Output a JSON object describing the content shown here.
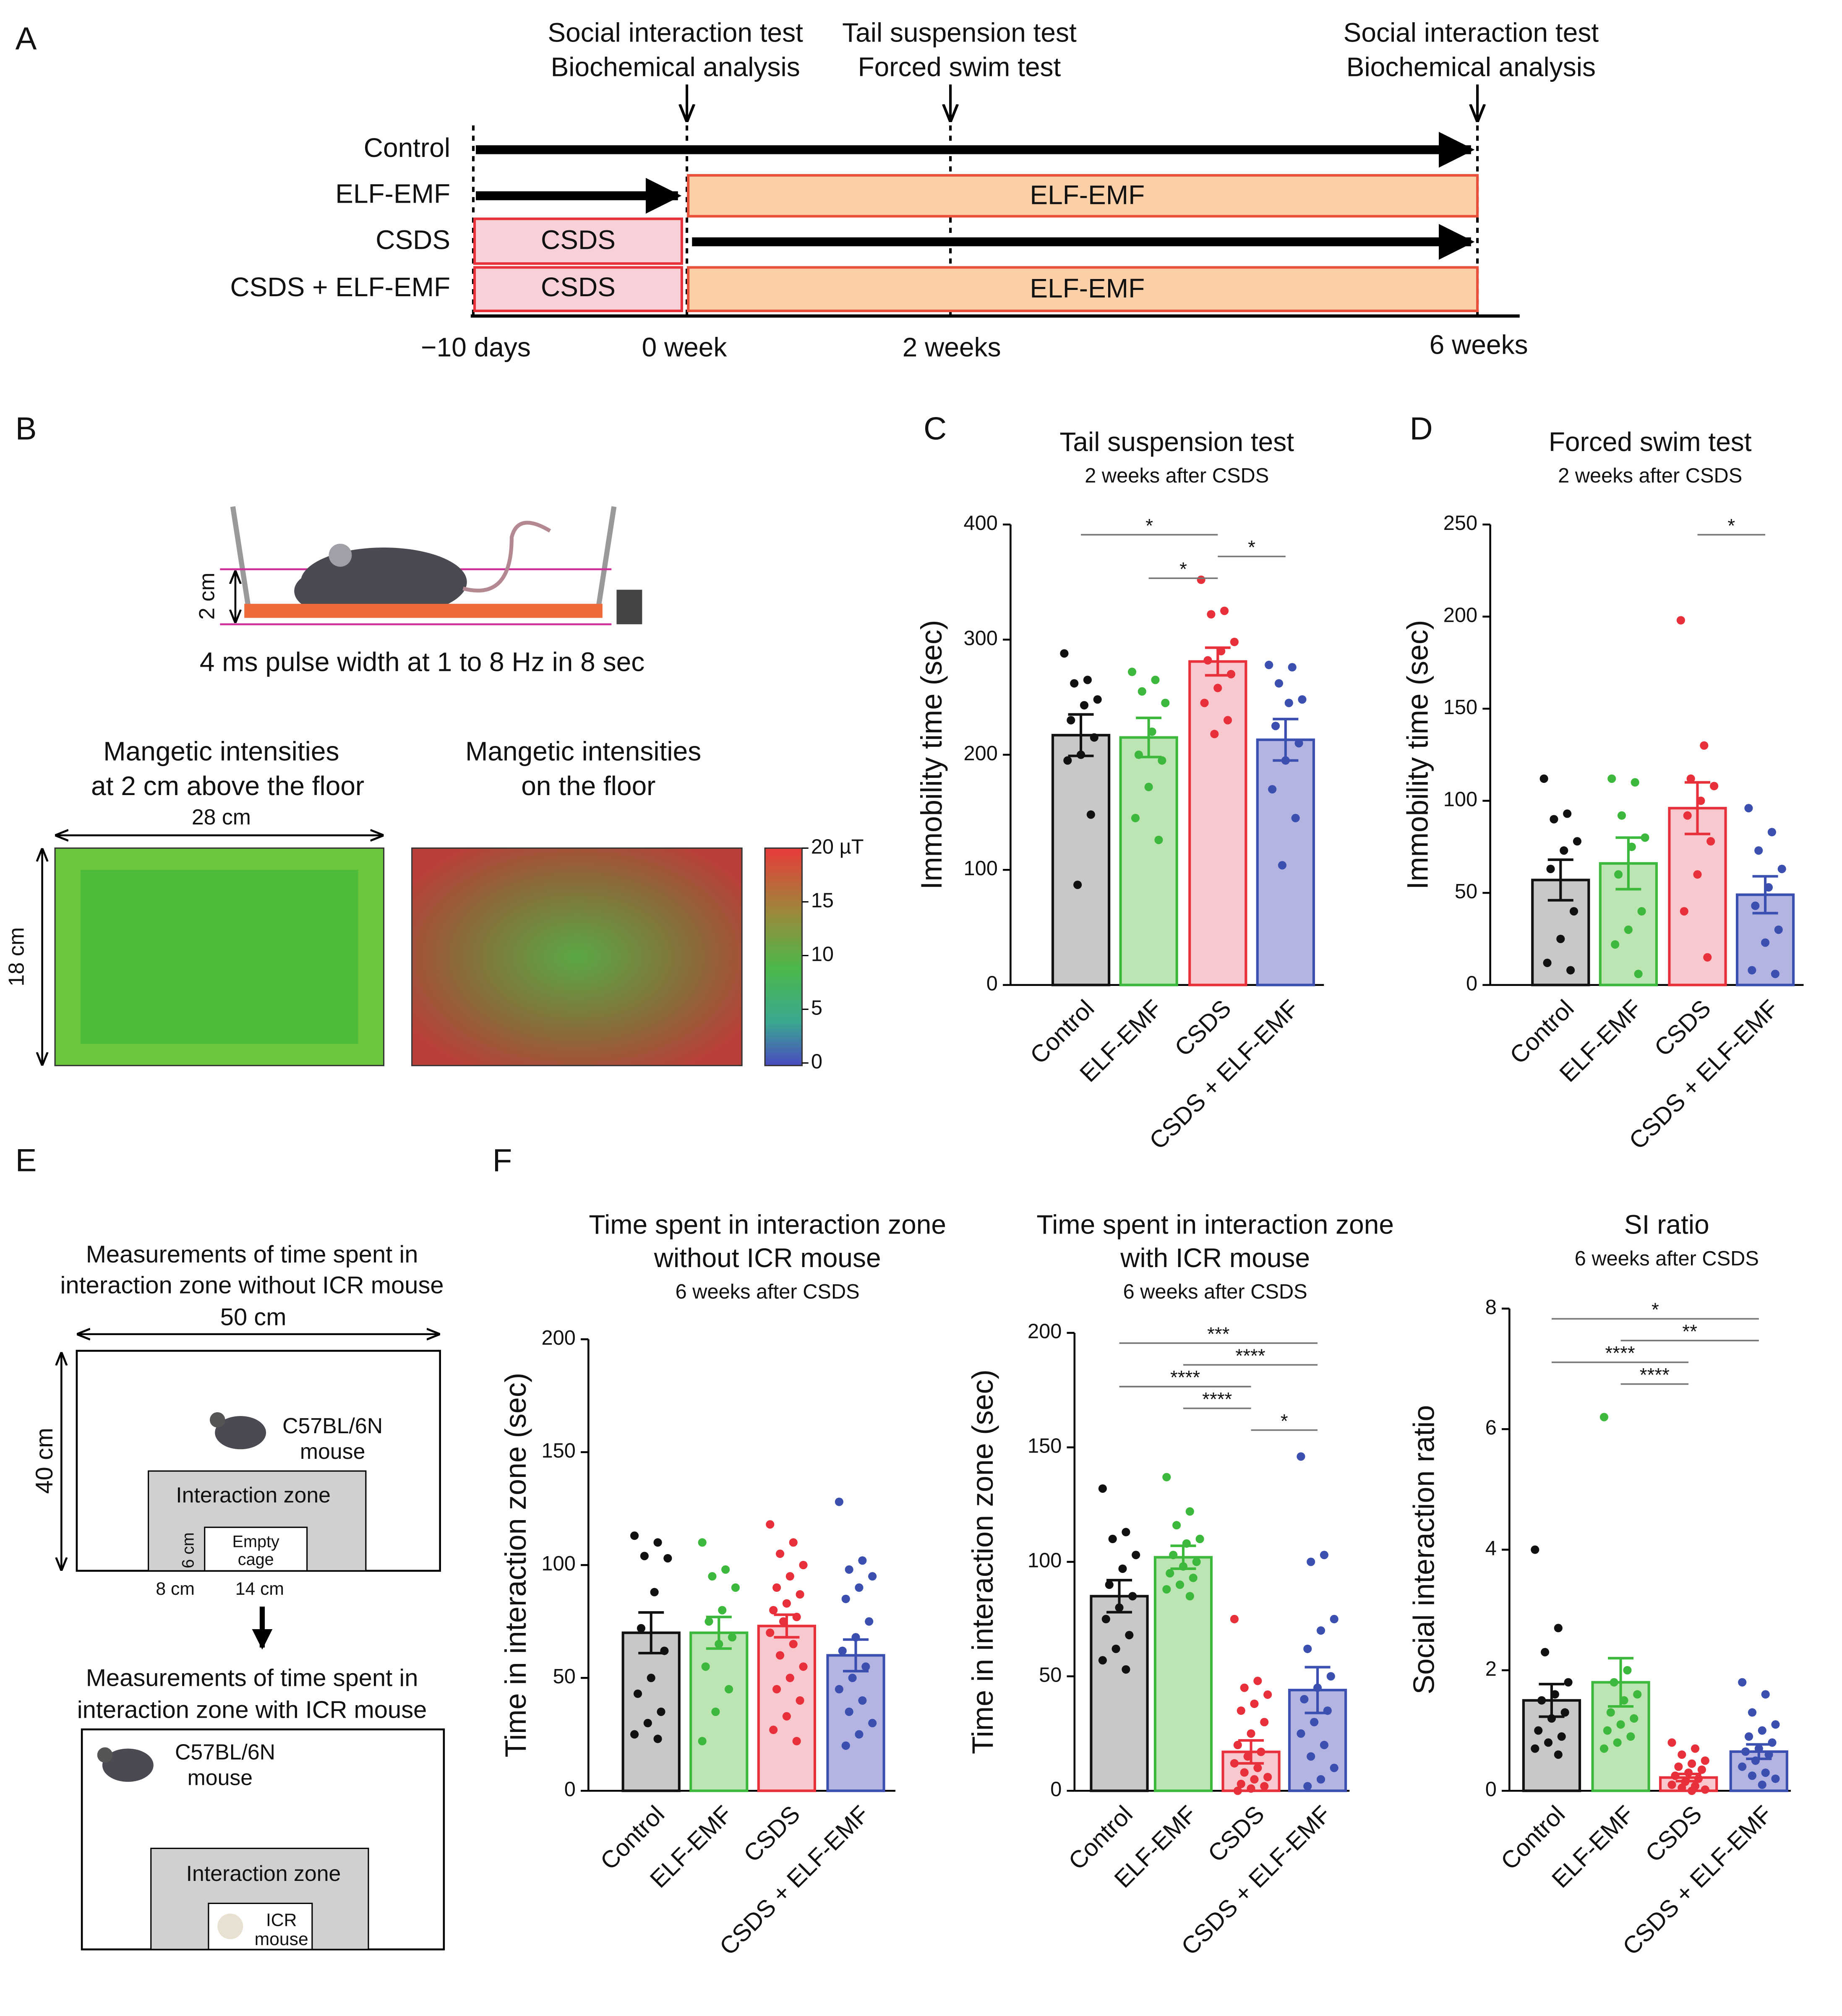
{
  "panel_labels": [
    "A",
    "B",
    "C",
    "D",
    "E",
    "F"
  ],
  "timeline": {
    "events": [
      [
        "Social interaction test",
        "Biochemical analysis"
      ],
      [
        "Tail suspension test",
        "Forced swim test"
      ],
      [
        "Social interaction test",
        "Biochemical analysis"
      ]
    ],
    "groups": [
      "Control",
      "ELF-EMF",
      "CSDS",
      "CSDS + ELF-EMF"
    ],
    "time_labels": [
      "−10 days",
      "0 week",
      "2 weeks",
      "6 weeks"
    ],
    "box_labels": [
      "ELF-EMF",
      "CSDS",
      "CSDS",
      "ELF-EMF"
    ]
  },
  "panel_b": {
    "height_label": "2 cm",
    "pulse": "4 ms pulse width at 1 to 8 Hz in 8 sec",
    "map_titles": [
      [
        "Mangetic intensities",
        "at 2 cm above the floor"
      ],
      [
        "Mangetic intensities",
        "on the floor"
      ]
    ],
    "width_label": "28 cm",
    "depth_label": "18 cm",
    "colorbar_lim": [
      0,
      20
    ],
    "colorbar_ticks": [
      {
        "value": 20,
        "label": "20 µT"
      },
      15,
      10,
      5,
      0
    ]
  },
  "panel_e": {
    "top_title": [
      "Measurements of time spent in",
      "interaction zone without ICR mouse"
    ],
    "width_label": "50 cm",
    "depth_label": "40 cm",
    "mouse_label": [
      "C57BL/6N",
      "mouse"
    ],
    "zone_label": "Interaction zone",
    "cage_label": [
      "Empty",
      "cage"
    ],
    "cage_depth": "6 cm",
    "offset_label": "8 cm",
    "cage_width": "14 cm",
    "bottom_title": [
      "Measurements of time spent in",
      "interaction zone with ICR mouse"
    ],
    "mouse_label2": [
      "C57BL/6N",
      "mouse"
    ],
    "zone_label2": "Interaction zone",
    "icr_label": [
      "ICR",
      "mouse"
    ]
  },
  "chart_data": [
    {
      "type": "bar",
      "title": "Tail suspension test",
      "subtitle": "2 weeks after CSDS",
      "ylabel": "Immobility time (sec)",
      "categories": [
        "Control",
        "ELF-EMF",
        "CSDS",
        "CSDS + ELF-EMF"
      ],
      "values": [
        217,
        215,
        281,
        213
      ],
      "errors": [
        18,
        17,
        12,
        18
      ],
      "fills": [
        "#c8c8c8",
        "#bde5b3",
        "#f9c8cf",
        "#b4b4e2"
      ],
      "edges": [
        "#111111",
        "#3cb83c",
        "#e8303a",
        "#3a4fb0"
      ],
      "points": [
        [
          288,
          265,
          262,
          248,
          243,
          230,
          215,
          200,
          195,
          148,
          87
        ],
        [
          272,
          265,
          255,
          245,
          220,
          200,
          195,
          172,
          145,
          126
        ],
        [
          352,
          325,
          322,
          298,
          290,
          282,
          270,
          258,
          245,
          230,
          218
        ],
        [
          278,
          276,
          262,
          248,
          245,
          225,
          210,
          195,
          170,
          145,
          104
        ]
      ],
      "ylim": [
        0,
        400
      ],
      "yticks": [
        0,
        100,
        200,
        300,
        400
      ],
      "significance": [
        {
          "groups": [
            1,
            2
          ],
          "label": "*"
        },
        {
          "groups": [
            2,
            3
          ],
          "label": "*"
        },
        {
          "groups": [
            0,
            2
          ],
          "label": "*"
        }
      ]
    },
    {
      "type": "bar",
      "title": "Forced swim test",
      "subtitle": "2 weeks after CSDS",
      "ylabel": "Immobility time (sec)",
      "categories": [
        "Control",
        "ELF-EMF",
        "CSDS",
        "CSDS + ELF-EMF"
      ],
      "values": [
        57,
        66,
        96,
        49
      ],
      "errors": [
        11,
        14,
        14,
        10
      ],
      "fills": [
        "#c8c8c8",
        "#bde5b3",
        "#f9c8cf",
        "#b4b4e2"
      ],
      "edges": [
        "#111111",
        "#3cb83c",
        "#e8303a",
        "#3a4fb0"
      ],
      "points": [
        [
          112,
          93,
          90,
          78,
          73,
          63,
          40,
          25,
          12,
          8
        ],
        [
          112,
          110,
          92,
          80,
          75,
          60,
          40,
          30,
          22,
          6
        ],
        [
          198,
          130,
          112,
          108,
          100,
          92,
          78,
          60,
          40,
          15
        ],
        [
          96,
          83,
          73,
          63,
          53,
          43,
          30,
          23,
          8,
          6
        ]
      ],
      "ylim": [
        0,
        250
      ],
      "yticks": [
        0,
        50,
        100,
        150,
        200,
        250
      ],
      "significance": [
        {
          "groups": [
            2,
            3
          ],
          "label": "*"
        }
      ]
    },
    {
      "type": "bar",
      "title": [
        "Time spent in interaction zone",
        "without ICR mouse"
      ],
      "subtitle": "6 weeks after CSDS",
      "ylabel": "Time in interaction zone (sec)",
      "categories": [
        "Control",
        "ELF-EMF",
        "CSDS",
        "CSDS + ELF-EMF"
      ],
      "values": [
        70,
        70,
        73,
        60
      ],
      "errors": [
        9,
        7,
        5,
        7
      ],
      "fills": [
        "#c8c8c8",
        "#bde5b3",
        "#f9c8cf",
        "#b4b4e2"
      ],
      "edges": [
        "#111111",
        "#3cb83c",
        "#e8303a",
        "#3a4fb0"
      ],
      "points": [
        [
          113,
          110,
          104,
          103,
          88,
          72,
          62,
          50,
          43,
          35,
          30,
          25,
          23
        ],
        [
          110,
          98,
          95,
          90,
          80,
          75,
          68,
          65,
          55,
          45,
          35,
          22
        ],
        [
          118,
          110,
          105,
          100,
          95,
          90,
          87,
          83,
          80,
          77,
          75,
          70,
          65,
          60,
          55,
          50,
          45,
          40,
          33,
          27,
          22
        ],
        [
          128,
          102,
          98,
          95,
          90,
          85,
          75,
          68,
          62,
          55,
          50,
          45,
          40,
          35,
          30,
          25,
          20
        ]
      ],
      "ylim": [
        0,
        200
      ],
      "yticks": [
        0,
        50,
        100,
        150,
        200
      ],
      "significance": []
    },
    {
      "type": "bar",
      "title": [
        "Time spent in interaction zone",
        "with ICR mouse"
      ],
      "subtitle": "6 weeks after CSDS",
      "ylabel": "Time in interaction zone (sec)",
      "categories": [
        "Control",
        "ELF-EMF",
        "CSDS",
        "CSDS + ELF-EMF"
      ],
      "values": [
        85,
        102,
        17,
        44
      ],
      "errors": [
        7,
        5,
        5,
        10
      ],
      "fills": [
        "#c8c8c8",
        "#bde5b3",
        "#f9c8cf",
        "#b4b4e2"
      ],
      "edges": [
        "#111111",
        "#3cb83c",
        "#e8303a",
        "#3a4fb0"
      ],
      "points": [
        [
          132,
          113,
          110,
          103,
          97,
          90,
          85,
          80,
          75,
          68,
          62,
          57,
          53
        ],
        [
          137,
          122,
          116,
          110,
          108,
          103,
          100,
          98,
          95,
          93,
          90,
          88,
          85
        ],
        [
          75,
          48,
          45,
          42,
          38,
          35,
          30,
          25,
          20,
          17,
          15,
          12,
          10,
          8,
          6,
          5,
          3,
          2,
          1,
          0
        ],
        [
          146,
          103,
          100,
          75,
          70,
          62,
          50,
          45,
          40,
          35,
          30,
          25,
          20,
          15,
          10,
          5,
          2
        ]
      ],
      "ylim": [
        0,
        200
      ],
      "yticks": [
        0,
        50,
        100,
        150,
        200
      ],
      "significance": [
        {
          "groups": [
            2,
            3
          ],
          "label": "*"
        },
        {
          "groups": [
            1,
            2
          ],
          "label": "****"
        },
        {
          "groups": [
            0,
            2
          ],
          "label": "****"
        },
        {
          "groups": [
            1,
            3
          ],
          "label": "****"
        },
        {
          "groups": [
            0,
            3
          ],
          "label": "***"
        }
      ]
    },
    {
      "type": "bar",
      "title": "SI ratio",
      "subtitle": "6 weeks after CSDS",
      "ylabel": "Social interaction ratio",
      "categories": [
        "Control",
        "ELF-EMF",
        "CSDS",
        "CSDS + ELF-EMF"
      ],
      "values": [
        1.5,
        1.8,
        0.22,
        0.65
      ],
      "errors": [
        0.27,
        0.4,
        0.06,
        0.12
      ],
      "fills": [
        "#c8c8c8",
        "#bde5b3",
        "#f9c8cf",
        "#b4b4e2"
      ],
      "edges": [
        "#111111",
        "#3cb83c",
        "#e8303a",
        "#3a4fb0"
      ],
      "points": [
        [
          4.0,
          2.7,
          2.3,
          1.8,
          1.6,
          1.5,
          1.3,
          1.2,
          1.0,
          0.9,
          0.8,
          0.7,
          0.6
        ],
        [
          6.2,
          2.0,
          1.8,
          1.6,
          1.5,
          1.3,
          1.2,
          1.1,
          1.0,
          0.9,
          0.8,
          0.7
        ],
        [
          0.8,
          0.7,
          0.6,
          0.5,
          0.45,
          0.4,
          0.35,
          0.3,
          0.25,
          0.2,
          0.15,
          0.1,
          0.08,
          0.05,
          0.02,
          0
        ],
        [
          1.8,
          1.6,
          1.3,
          1.1,
          1.0,
          0.9,
          0.8,
          0.7,
          0.65,
          0.6,
          0.5,
          0.4,
          0.3,
          0.25,
          0.2,
          0.1
        ]
      ],
      "ylim": [
        0,
        8
      ],
      "yticks": [
        0,
        2,
        4,
        6,
        8
      ],
      "significance": [
        {
          "groups": [
            1,
            2
          ],
          "label": "****"
        },
        {
          "groups": [
            0,
            2
          ],
          "label": "****"
        },
        {
          "groups": [
            1,
            3
          ],
          "label": "**"
        },
        {
          "groups": [
            0,
            3
          ],
          "label": "*"
        }
      ]
    }
  ]
}
